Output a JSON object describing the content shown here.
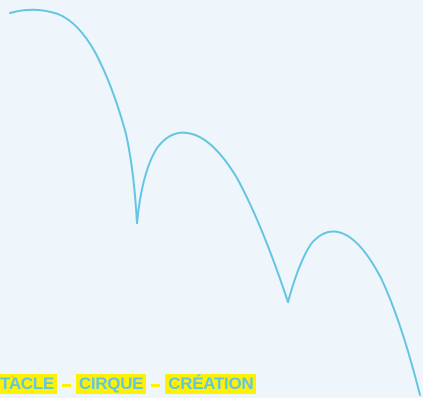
{
  "colors": {
    "background": "#eef6fc",
    "curve": "#64c5e2",
    "highlight": "#fff200",
    "text": "#64c5e2"
  },
  "banner": {
    "words": [
      "TACLE",
      "CIRQUE",
      "CRÉATION"
    ],
    "separator": "–"
  }
}
